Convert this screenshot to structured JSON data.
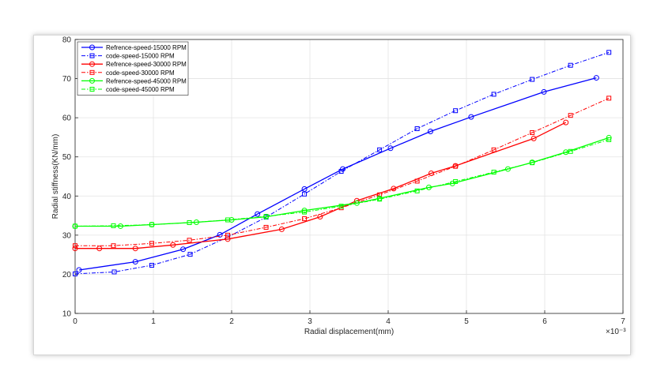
{
  "chart_data": {
    "type": "line",
    "xlabel": "Radial displacement(mm)",
    "ylabel": "Radial stiffness(KN/mm)",
    "x_exponent_label": "×10⁻³",
    "xlim": [
      0,
      7
    ],
    "ylim": [
      10,
      80
    ],
    "xticks": [
      "0",
      "1",
      "2",
      "3",
      "4",
      "5",
      "6",
      "7"
    ],
    "yticks": [
      "10",
      "20",
      "30",
      "40",
      "50",
      "60",
      "70",
      "80"
    ],
    "grid": true,
    "legend_position": "top-left",
    "series": [
      {
        "name": "Refrence-speed-15000 RPM",
        "color": "#0000ff",
        "style": "solid",
        "marker": "circle",
        "points": [
          [
            0.05,
            21.1
          ],
          [
            0.77,
            23.2
          ],
          [
            1.38,
            26.4
          ],
          [
            1.85,
            30.1
          ],
          [
            2.33,
            35.4
          ],
          [
            2.93,
            41.8
          ],
          [
            3.42,
            46.9
          ],
          [
            4.03,
            52.2
          ],
          [
            4.54,
            56.5
          ],
          [
            5.06,
            60.2
          ],
          [
            5.99,
            66.6
          ],
          [
            6.66,
            70.2
          ]
        ]
      },
      {
        "name": "code-speed-15000 RPM",
        "color": "#0000ff",
        "style": "dashdot",
        "marker": "square",
        "points": [
          [
            0.0,
            20.1
          ],
          [
            0.5,
            20.6
          ],
          [
            0.98,
            22.3
          ],
          [
            1.47,
            25.1
          ],
          [
            1.95,
            29.5
          ],
          [
            2.44,
            34.6
          ],
          [
            2.93,
            40.5
          ],
          [
            3.4,
            46.3
          ],
          [
            3.89,
            51.8
          ],
          [
            4.37,
            57.2
          ],
          [
            4.86,
            61.8
          ],
          [
            5.35,
            66.0
          ],
          [
            5.84,
            69.8
          ],
          [
            6.33,
            73.4
          ],
          [
            6.82,
            76.7
          ]
        ]
      },
      {
        "name": "Refrence-speed-30000 RPM",
        "color": "#ff0000",
        "style": "solid",
        "marker": "circle",
        "points": [
          [
            0.0,
            26.6
          ],
          [
            0.31,
            26.6
          ],
          [
            0.77,
            26.6
          ],
          [
            1.25,
            27.5
          ],
          [
            1.95,
            29.0
          ],
          [
            2.64,
            31.5
          ],
          [
            3.13,
            34.7
          ],
          [
            3.6,
            38.8
          ],
          [
            4.07,
            41.9
          ],
          [
            4.55,
            45.8
          ],
          [
            4.86,
            47.7
          ],
          [
            5.86,
            54.7
          ],
          [
            6.27,
            58.8
          ]
        ]
      },
      {
        "name": "code-speed-30000 RPM",
        "color": "#ff0000",
        "style": "dashdot",
        "marker": "square",
        "points": [
          [
            0.0,
            27.3
          ],
          [
            0.49,
            27.3
          ],
          [
            0.98,
            27.9
          ],
          [
            1.46,
            28.7
          ],
          [
            1.95,
            30.0
          ],
          [
            2.44,
            32.0
          ],
          [
            2.93,
            34.2
          ],
          [
            3.4,
            37.0
          ],
          [
            3.89,
            40.3
          ],
          [
            4.37,
            43.8
          ],
          [
            4.86,
            47.6
          ],
          [
            5.35,
            51.8
          ],
          [
            5.84,
            56.2
          ],
          [
            6.33,
            60.6
          ],
          [
            6.82,
            65.0
          ]
        ]
      },
      {
        "name": "Refrence-speed-45000 RPM",
        "color": "#00ff00",
        "style": "solid",
        "marker": "circle",
        "points": [
          [
            0.0,
            32.3
          ],
          [
            0.58,
            32.3
          ],
          [
            0.98,
            32.7
          ],
          [
            1.55,
            33.3
          ],
          [
            2.0,
            33.9
          ],
          [
            2.44,
            34.7
          ],
          [
            2.93,
            36.3
          ],
          [
            3.6,
            38.2
          ],
          [
            3.89,
            39.4
          ],
          [
            4.52,
            42.2
          ],
          [
            4.82,
            43.2
          ],
          [
            5.53,
            46.9
          ],
          [
            5.84,
            48.6
          ],
          [
            6.27,
            51.2
          ],
          [
            6.82,
            54.9
          ]
        ]
      },
      {
        "name": "code-speed-45000 RPM",
        "color": "#00ff00",
        "style": "dashdot",
        "marker": "square",
        "points": [
          [
            0.0,
            32.3
          ],
          [
            0.49,
            32.4
          ],
          [
            0.98,
            32.7
          ],
          [
            1.46,
            33.2
          ],
          [
            1.95,
            33.9
          ],
          [
            2.44,
            34.8
          ],
          [
            2.93,
            35.9
          ],
          [
            3.4,
            37.4
          ],
          [
            3.89,
            39.2
          ],
          [
            4.37,
            41.3
          ],
          [
            4.86,
            43.7
          ],
          [
            5.35,
            46.1
          ],
          [
            5.84,
            48.5
          ],
          [
            6.33,
            51.4
          ],
          [
            6.82,
            54.4
          ]
        ]
      }
    ]
  }
}
